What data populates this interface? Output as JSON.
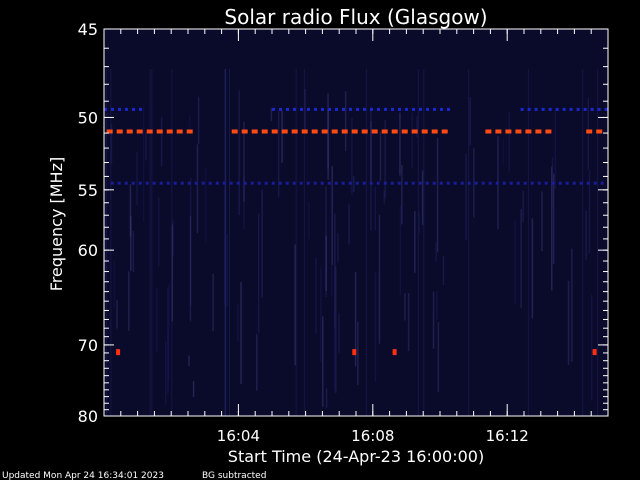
{
  "chart_data": {
    "type": "heatmap",
    "title": "Solar radio Flux (Glasgow)",
    "xlabel": "Start Time (24-Apr-23 16:00:00)",
    "ylabel": "Frequency [MHz]",
    "x_unit": "minutes after 16:00:00",
    "xlim": [
      0,
      15
    ],
    "ylim": [
      45,
      80
    ],
    "x_ticks": [
      {
        "value": 4,
        "label": "16:04"
      },
      {
        "value": 8,
        "label": "16:08"
      },
      {
        "value": 12,
        "label": "16:12"
      }
    ],
    "y_ticks": [
      {
        "value": 45,
        "label": "45"
      },
      {
        "value": 50,
        "label": "50"
      },
      {
        "value": 55,
        "label": "55"
      },
      {
        "value": 60,
        "label": "60"
      },
      {
        "value": 70,
        "label": "70"
      },
      {
        "value": 80,
        "label": "80"
      }
    ],
    "background_color": "#0a0a2a",
    "features": [
      {
        "name": "interference-line-50.9MHz",
        "frequency": 50.9,
        "color": "#ff4a12",
        "style": "dashed",
        "segments": [
          [
            0.08,
            2.9
          ],
          [
            3.8,
            10.45
          ],
          [
            11.35,
            13.45
          ],
          [
            14.35,
            15.0
          ]
        ]
      },
      {
        "name": "band-49.5MHz",
        "frequency": 49.5,
        "color": "#1a28d0",
        "style": "dotted",
        "segments": [
          [
            0.0,
            1.2
          ],
          [
            5.0,
            10.3
          ],
          [
            12.4,
            15.0
          ]
        ]
      },
      {
        "name": "band-54.5MHz",
        "frequency": 54.5,
        "color": "#1a1c9a",
        "style": "dotted",
        "segments": [
          [
            0.2,
            15.0
          ]
        ]
      }
    ],
    "spots": [
      {
        "time": 0.42,
        "frequency": 70.9,
        "color": "#ff3010"
      },
      {
        "time": 7.45,
        "frequency": 70.9,
        "color": "#ff3010"
      },
      {
        "time": 8.65,
        "frequency": 70.9,
        "color": "#ff3010"
      },
      {
        "time": 14.6,
        "frequency": 70.9,
        "color": "#ff3010"
      }
    ]
  },
  "footer": {
    "updated": "Updated Mon Apr 24 16:34:01 2023",
    "mode": "BG subtracted"
  }
}
